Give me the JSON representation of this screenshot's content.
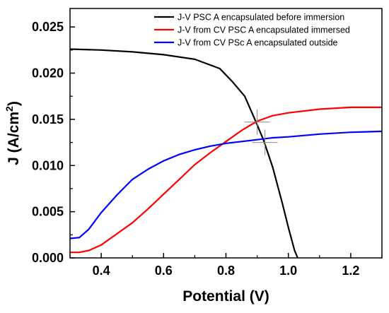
{
  "chart_data": {
    "type": "line",
    "xlabel": "Potential (V)",
    "ylabel": "J (A/cm",
    "ylabel_sup": "2",
    "ylabel_end": ")",
    "xlim": [
      0.3,
      1.3
    ],
    "ylim": [
      0.0,
      0.027
    ],
    "xticks": [
      0.4,
      0.6,
      0.8,
      1.0,
      1.2
    ],
    "xtick_labels": [
      "0.4",
      "0.6",
      "0.8",
      "1.0",
      "1.2"
    ],
    "yticks": [
      0.0,
      0.005,
      0.01,
      0.015,
      0.02,
      0.025
    ],
    "ytick_labels": [
      "0.000",
      "0.005",
      "0.010",
      "0.015",
      "0.020",
      "0.025"
    ],
    "grid": false,
    "legend_position": "top-right",
    "series": [
      {
        "name": "J-V PSC A encapsulated before immersion",
        "color": "#000000",
        "x": [
          0.3,
          0.4,
          0.5,
          0.6,
          0.7,
          0.78,
          0.82,
          0.86,
          0.89,
          0.92,
          0.95,
          0.98,
          1.0,
          1.02,
          1.03
        ],
        "y": [
          0.0226,
          0.0225,
          0.0223,
          0.022,
          0.0215,
          0.0205,
          0.0191,
          0.0175,
          0.0152,
          0.0128,
          0.0098,
          0.006,
          0.0033,
          0.0008,
          0.0
        ]
      },
      {
        "name": "J-V from CV PSC A encapsulated immersed",
        "color": "#ff0000",
        "x": [
          0.3,
          0.33,
          0.36,
          0.4,
          0.45,
          0.5,
          0.55,
          0.6,
          0.65,
          0.7,
          0.75,
          0.8,
          0.85,
          0.9,
          0.95,
          1.0,
          1.1,
          1.2,
          1.3
        ],
        "y": [
          0.0006,
          0.0006,
          0.0008,
          0.0014,
          0.0026,
          0.0038,
          0.0053,
          0.0069,
          0.0085,
          0.0101,
          0.0114,
          0.0126,
          0.0138,
          0.0148,
          0.0154,
          0.0157,
          0.0161,
          0.0163,
          0.0163
        ]
      },
      {
        "name": "J-V from CV PSc A encapsulated outside",
        "color": "#0000ff",
        "x": [
          0.3,
          0.33,
          0.36,
          0.4,
          0.45,
          0.5,
          0.55,
          0.6,
          0.65,
          0.7,
          0.75,
          0.8,
          0.85,
          0.9,
          0.95,
          1.0,
          1.1,
          1.2,
          1.3
        ],
        "y": [
          0.0021,
          0.0022,
          0.0031,
          0.0049,
          0.0068,
          0.0085,
          0.0096,
          0.0105,
          0.0112,
          0.0117,
          0.0121,
          0.0124,
          0.0126,
          0.0128,
          0.013,
          0.0131,
          0.0134,
          0.0136,
          0.0137
        ]
      }
    ],
    "markers": [
      {
        "x": 0.9,
        "y": 0.0147
      },
      {
        "x": 0.925,
        "y": 0.0125
      }
    ]
  }
}
